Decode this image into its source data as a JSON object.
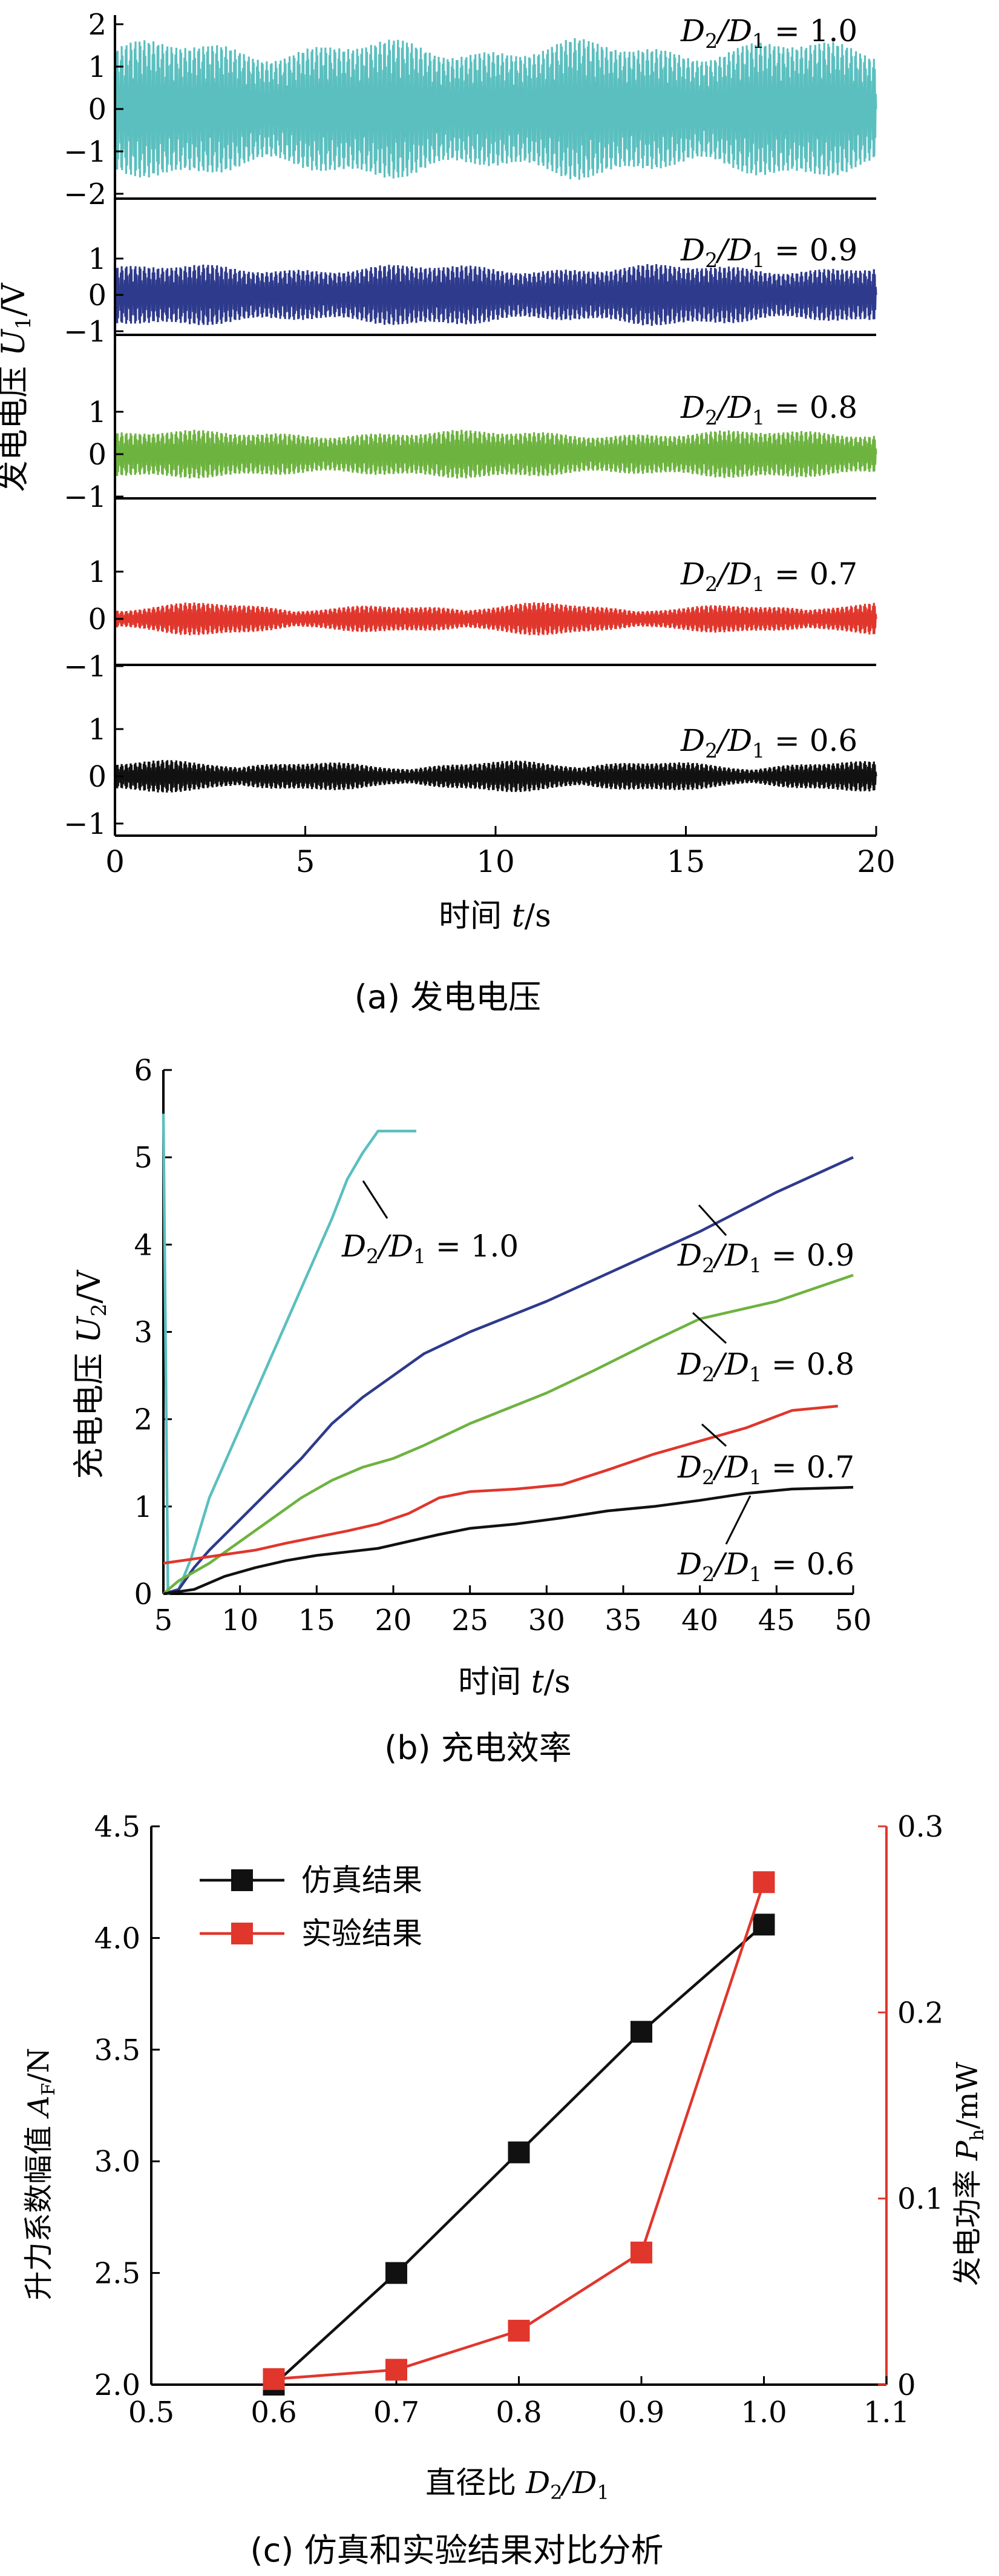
{
  "chart_data": [
    {
      "type": "line",
      "title": "(a) 发电电压",
      "xlabel": "时间 t/s",
      "ylabel": "发电电压 U1/V",
      "xlim": [
        0,
        20
      ],
      "x_ticks": [
        "0",
        "5",
        "10",
        "15",
        "20"
      ],
      "panels": [
        {
          "label": "D2/D1 = 1.0",
          "label_parts": [
            "D",
            "2",
            "/D",
            "1",
            " = 1.0"
          ],
          "color": "#5BBFBF",
          "y_ticks": [
            "2",
            "1",
            "0",
            "−1",
            "−2"
          ],
          "ylim": [
            -2,
            2
          ],
          "amplitude": 1.4
        },
        {
          "label": "D2/D1 = 0.9",
          "label_parts": [
            "D",
            "2",
            "/D",
            "1",
            " = 0.9"
          ],
          "color": "#2E3A8C",
          "y_ticks": [
            "1",
            "0",
            "−1"
          ],
          "ylim": [
            -1,
            1.3
          ],
          "amplitude": 0.72
        },
        {
          "label": "D2/D1 = 0.8",
          "label_parts": [
            "D",
            "2",
            "/D",
            "1",
            " = 0.8"
          ],
          "color": "#6DB33F",
          "y_ticks": [
            "1",
            "0",
            "−1"
          ],
          "ylim": [
            -1,
            1.6
          ],
          "amplitude": 0.48
        },
        {
          "label": "D2/D1 = 0.7",
          "label_parts": [
            "D",
            "2",
            "/D",
            "1",
            " = 0.7"
          ],
          "color": "#E0362C",
          "y_ticks": [
            "1",
            "0",
            "−1"
          ],
          "ylim": [
            -1,
            1.6
          ],
          "amplitude": 0.3
        },
        {
          "label": "D2/D1 = 0.6",
          "label_parts": [
            "D",
            "2",
            "/D",
            "1",
            " = 0.6"
          ],
          "color": "#111111",
          "y_ticks": [
            "1",
            "0",
            "−1"
          ],
          "ylim": [
            -1,
            1.6
          ],
          "amplitude": 0.3
        }
      ]
    },
    {
      "type": "line",
      "title": "(b) 充电效率",
      "xlabel": "时间 t/s",
      "ylabel": "充电电压 U2/V",
      "xlim": [
        5,
        50
      ],
      "ylim": [
        0,
        6
      ],
      "x_ticks": [
        "5",
        "10",
        "15",
        "20",
        "25",
        "30",
        "35",
        "40",
        "45",
        "50"
      ],
      "y_ticks": [
        "0",
        "1",
        "2",
        "3",
        "4",
        "5",
        "6"
      ],
      "series": [
        {
          "name": "D2/D1 = 1.0",
          "label_parts": [
            "D",
            "2",
            "/D",
            "1",
            " = 1.0"
          ],
          "color": "#5BBFBF",
          "x": [
            5,
            5.3,
            6,
            6.8,
            8,
            10,
            12,
            14,
            16,
            17,
            18,
            19,
            20,
            21.5
          ],
          "y": [
            5.5,
            0,
            0.05,
            0.4,
            1.1,
            1.9,
            2.7,
            3.5,
            4.3,
            4.75,
            5.05,
            5.3,
            5.3,
            5.3
          ]
        },
        {
          "name": "D2/D1 = 0.9",
          "label_parts": [
            "D",
            "2",
            "/D",
            "1",
            " = 0.9"
          ],
          "color": "#2E3A8C",
          "x": [
            5,
            6,
            7,
            8,
            10,
            12,
            14,
            16,
            18,
            20,
            22,
            25,
            30,
            35,
            40,
            45,
            50
          ],
          "y": [
            0,
            0.05,
            0.3,
            0.5,
            0.85,
            1.2,
            1.55,
            1.95,
            2.25,
            2.5,
            2.75,
            3.0,
            3.35,
            3.75,
            4.15,
            4.6,
            5.0
          ]
        },
        {
          "name": "D2/D1 = 0.8",
          "label_parts": [
            "D",
            "2",
            "/D",
            "1",
            " = 0.8"
          ],
          "color": "#6DB33F",
          "x": [
            5,
            6,
            8,
            10,
            12,
            14,
            16,
            18,
            20,
            22,
            25,
            30,
            33,
            37,
            40,
            45,
            50
          ],
          "y": [
            0,
            0.15,
            0.35,
            0.6,
            0.85,
            1.1,
            1.3,
            1.45,
            1.55,
            1.7,
            1.95,
            2.3,
            2.55,
            2.9,
            3.15,
            3.35,
            3.65
          ]
        },
        {
          "name": "D2/D1 = 0.7",
          "label_parts": [
            "D",
            "2",
            "/D",
            "1",
            " = 0.7"
          ],
          "color": "#E0362C",
          "x": [
            5,
            7,
            9,
            11,
            13,
            15,
            17,
            19,
            21,
            23,
            25,
            28,
            31,
            34,
            37,
            40,
            43,
            46,
            49
          ],
          "y": [
            0.35,
            0.4,
            0.45,
            0.5,
            0.58,
            0.65,
            0.72,
            0.8,
            0.92,
            1.1,
            1.17,
            1.2,
            1.25,
            1.42,
            1.6,
            1.75,
            1.9,
            2.1,
            2.15
          ]
        },
        {
          "name": "D2/D1 = 0.6",
          "label_parts": [
            "D",
            "2",
            "/D",
            "1",
            " = 0.6"
          ],
          "color": "#111111",
          "x": [
            5,
            7,
            9,
            11,
            13,
            15,
            17,
            19,
            21,
            23,
            25,
            28,
            31,
            34,
            37,
            40,
            43,
            46,
            50
          ],
          "y": [
            0,
            0.05,
            0.2,
            0.3,
            0.38,
            0.44,
            0.48,
            0.52,
            0.6,
            0.68,
            0.75,
            0.8,
            0.87,
            0.95,
            1.0,
            1.07,
            1.15,
            1.2,
            1.22
          ]
        }
      ]
    },
    {
      "type": "line",
      "title": "(c) 仿真和实验结果对比分析",
      "xlabel": "直径比 D2/D1",
      "ylabel_left": "升力系数幅值 AF/N",
      "ylabel_right": "发电功率 Ph/mW",
      "xlim": [
        0.5,
        1.1
      ],
      "ylim_left": [
        2.0,
        4.5
      ],
      "ylim_right": [
        0,
        0.3
      ],
      "x_ticks": [
        "0.5",
        "0.6",
        "0.7",
        "0.8",
        "0.9",
        "1.0",
        "1.1"
      ],
      "y_ticks_left": [
        "2.0",
        "2.5",
        "3.0",
        "3.5",
        "4.0",
        "4.5"
      ],
      "y_ticks_right": [
        "0",
        "0.1",
        "0.2",
        "0.3"
      ],
      "legend_position": "top-left",
      "series": [
        {
          "name": "仿真结果",
          "color": "#111111",
          "axis": "left",
          "x": [
            0.6,
            0.7,
            0.8,
            0.9,
            1.0
          ],
          "y": [
            2.0,
            2.5,
            3.04,
            3.58,
            4.06
          ]
        },
        {
          "name": "实验结果",
          "color": "#E0362C",
          "axis": "right",
          "x": [
            0.6,
            0.7,
            0.8,
            0.9,
            1.0
          ],
          "y": [
            0.003,
            0.008,
            0.029,
            0.071,
            0.27
          ]
        }
      ]
    }
  ]
}
